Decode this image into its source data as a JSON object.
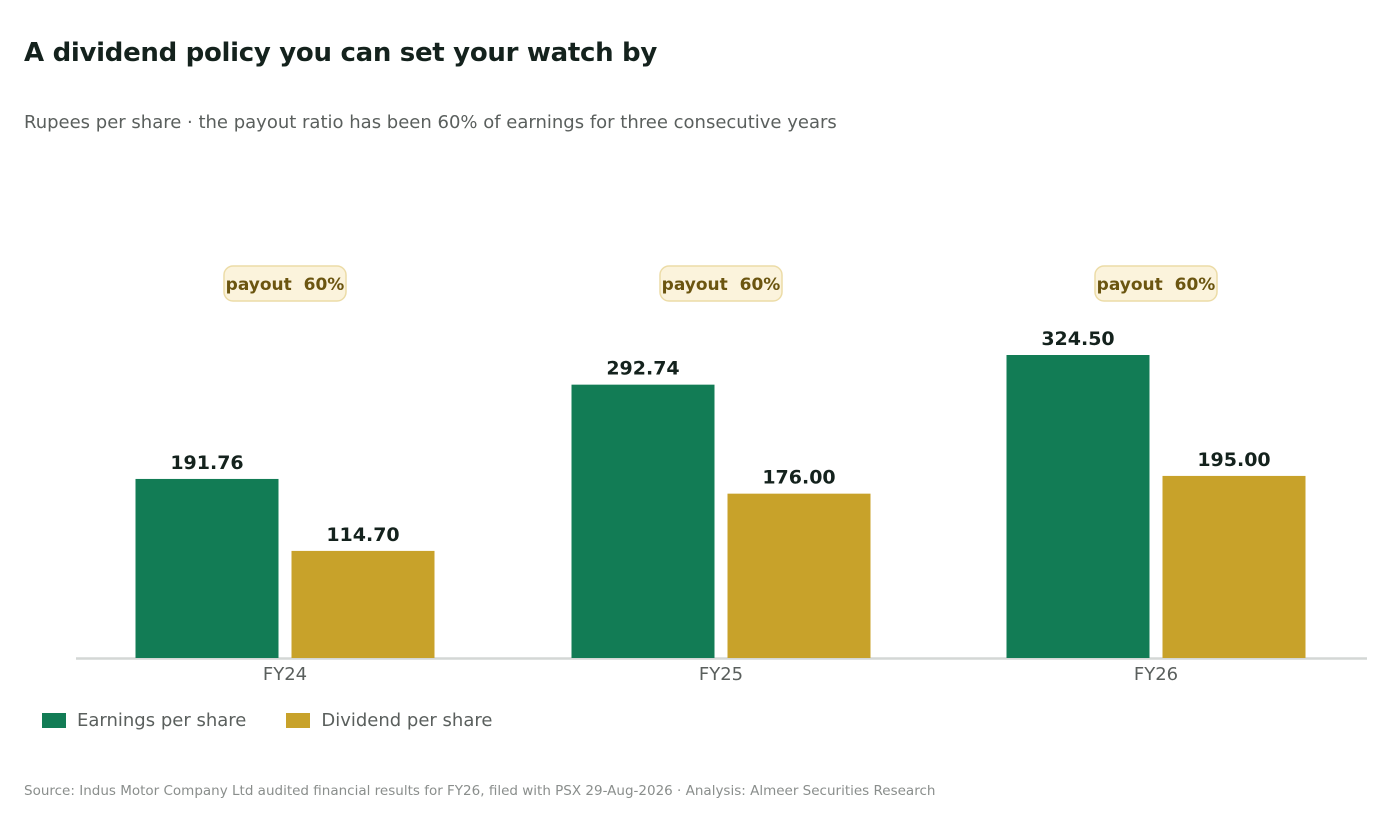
{
  "title": "A dividend policy you can set your watch by",
  "subtitle": "Rupees per share  ·  the payout ratio has been 60% of earnings for three consecutive years",
  "source": "Source: Indus Motor Company Ltd audited financial results for FY26, filed with PSX 29-Aug-2026  ·  Analysis: Almeer Securities Research",
  "chart_data": {
    "type": "bar",
    "categories": [
      "FY24",
      "FY25",
      "FY26"
    ],
    "series": [
      {
        "name": "Earnings per share",
        "values": [
          191.76,
          292.74,
          324.5
        ],
        "labels": [
          "191.76",
          "292.74",
          "324.50"
        ],
        "color": "#127c55"
      },
      {
        "name": "Dividend per share",
        "values": [
          114.7,
          176.0,
          195.0
        ],
        "labels": [
          "114.70",
          "176.00",
          "195.00"
        ],
        "color": "#c8a22a"
      }
    ],
    "annotations": [
      "payout  60%",
      "payout  60%",
      "payout  60%"
    ],
    "ylim": [
      0,
      324.5
    ],
    "grid": false,
    "legend": "bottom-left"
  }
}
